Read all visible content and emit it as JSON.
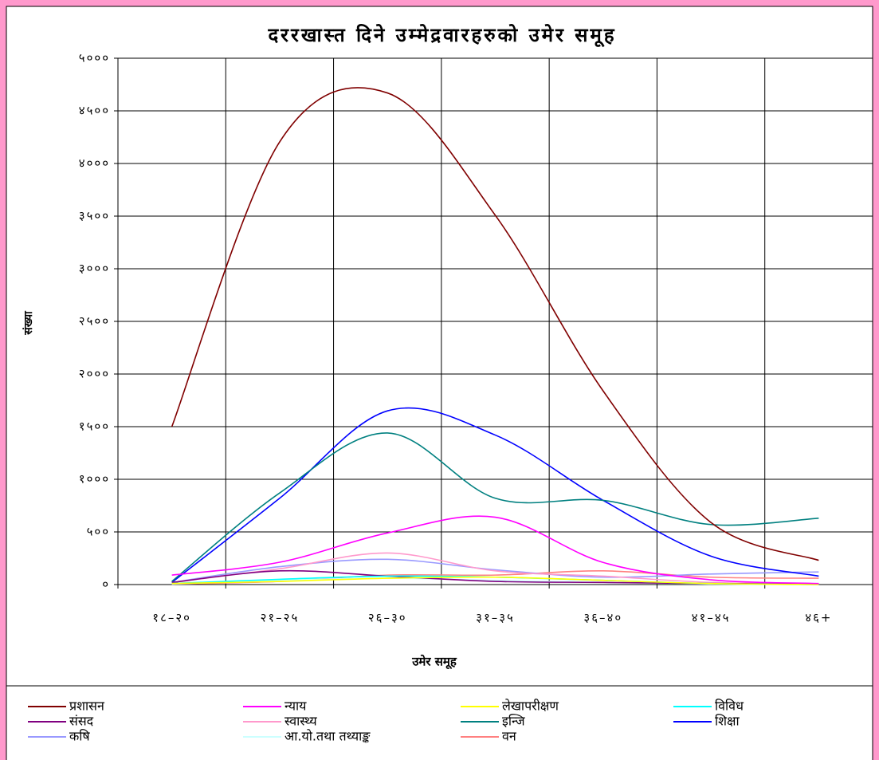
{
  "chart_data": {
    "type": "line",
    "title": "दररखास्त दिने उम्मेद्रवारहरुको उमेर समूह",
    "x_label": "उमेर समूह",
    "y_label": "संख्या",
    "categories": [
      "१८–२०",
      "२१–२५",
      "२६–३०",
      "३१–३५",
      "३६–४०",
      "४१–४५",
      "४६+"
    ],
    "ylim": [
      0,
      5000
    ],
    "yticks": [
      {
        "value": 0,
        "label": "०"
      },
      {
        "value": 500,
        "label": "५००"
      },
      {
        "value": 1000,
        "label": "१०००"
      },
      {
        "value": 1500,
        "label": "१५००"
      },
      {
        "value": 2000,
        "label": "२०००"
      },
      {
        "value": 2500,
        "label": "२५००"
      },
      {
        "value": 3000,
        "label": "३०००"
      },
      {
        "value": 3500,
        "label": "३५००"
      },
      {
        "value": 4000,
        "label": "४०००"
      },
      {
        "value": 4500,
        "label": "४५००"
      },
      {
        "value": 5000,
        "label": "५०००"
      }
    ],
    "grid": true,
    "smooth": true,
    "legend": "bottom",
    "series": [
      {
        "name": "प्रशासन",
        "color": "#800000",
        "values": [
          1500,
          4205,
          4670,
          3508,
          1840,
          590,
          230
        ]
      },
      {
        "name": "न्याय",
        "color": "#ff00ff",
        "values": [
          90,
          212,
          490,
          640,
          210,
          45,
          10
        ]
      },
      {
        "name": "लेखापरीक्षण",
        "color": "#ffff00",
        "values": [
          10,
          30,
          60,
          70,
          40,
          10,
          0
        ]
      },
      {
        "name": "विविध",
        "color": "#00ffff",
        "values": [
          10,
          50,
          80,
          70,
          40,
          10,
          0
        ]
      },
      {
        "name": "संसद",
        "color": "#800080",
        "values": [
          20,
          130,
          80,
          30,
          20,
          10,
          5
        ]
      },
      {
        "name": "स्वास्थ्य",
        "color": "#ff99cc",
        "values": [
          20,
          150,
          300,
          130,
          80,
          20,
          5
        ]
      },
      {
        "name": "इन्जि",
        "color": "#008080",
        "values": [
          30,
          870,
          1440,
          820,
          800,
          570,
          630
        ]
      },
      {
        "name": "शिक्षा",
        "color": "#0000ff",
        "values": [
          20,
          820,
          1650,
          1420,
          800,
          270,
          80
        ]
      },
      {
        "name": "कषि",
        "color": "#9999ff",
        "values": [
          20,
          170,
          240,
          140,
          70,
          100,
          120
        ]
      },
      {
        "name": "आ.यो.तथा तथ्याङ्क",
        "color": "#ccffff",
        "values": [
          5,
          40,
          60,
          40,
          20,
          5,
          0
        ]
      },
      {
        "name": "वन",
        "color": "#ff8080",
        "values": [
          5,
          30,
          90,
          90,
          130,
          70,
          60
        ]
      }
    ]
  }
}
